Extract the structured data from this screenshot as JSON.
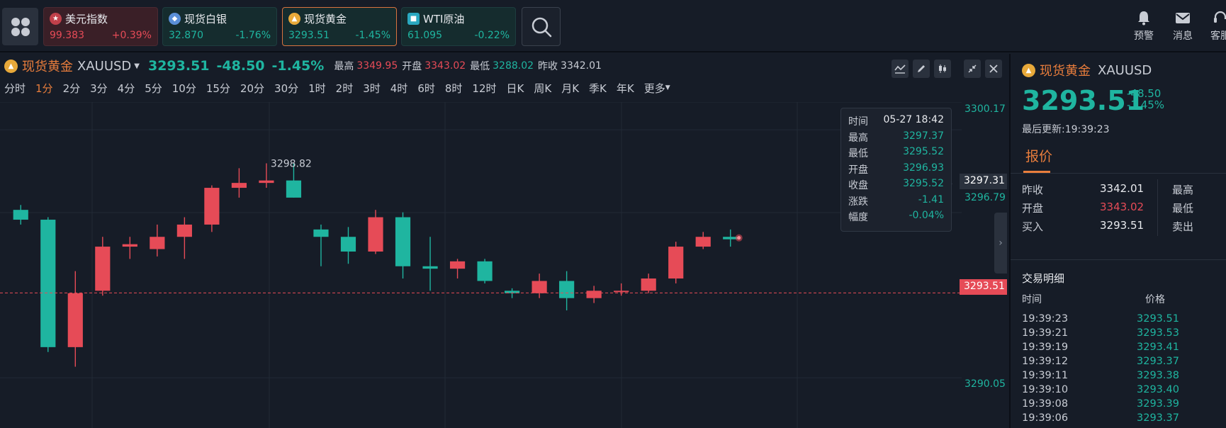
{
  "tickers": [
    {
      "name": "美元指数",
      "price": "99.383",
      "change": "+0.39%",
      "dir": "up"
    },
    {
      "name": "现货白银",
      "price": "32.870",
      "change": "-1.76%",
      "dir": "down"
    },
    {
      "name": "现货黄金",
      "price": "3293.51",
      "change": "-1.45%",
      "dir": "down"
    },
    {
      "name": "WTI原油",
      "price": "61.095",
      "change": "-0.22%",
      "dir": "down"
    }
  ],
  "top_right": {
    "alert": "预警",
    "messages": "消息",
    "service": "客服"
  },
  "chart_header": {
    "name": "现货黄金",
    "code": "XAUUSD",
    "price": "3293.51",
    "change": "-48.50",
    "change_pct": "-1.45%",
    "high_label": "最高",
    "high": "3349.95",
    "open_label": "开盘",
    "open": "3343.02",
    "low_label": "最低",
    "low": "3288.02",
    "prev_label": "昨收",
    "prev": "3342.01"
  },
  "periods": [
    "分时",
    "1分",
    "2分",
    "3分",
    "4分",
    "5分",
    "10分",
    "15分",
    "20分",
    "30分",
    "1时",
    "2时",
    "3时",
    "4时",
    "6时",
    "8时",
    "12时",
    "日K",
    "周K",
    "月K",
    "季K",
    "年K",
    "更多"
  ],
  "active_period": "1分",
  "price_axis": {
    "top": "3300.17",
    "mid": "3296.79",
    "bottom": "3290.05",
    "hover_tag": "3297.31",
    "last_tag": "3293.51"
  },
  "peak_label": "3298.82",
  "tooltip": {
    "rows": [
      {
        "k": "时间",
        "v": "05-27 18:42"
      },
      {
        "k": "最高",
        "v": "3297.37"
      },
      {
        "k": "最低",
        "v": "3295.52"
      },
      {
        "k": "开盘",
        "v": "3296.93"
      },
      {
        "k": "收盘",
        "v": "3295.52"
      },
      {
        "k": "涨跌",
        "v": "-1.41"
      },
      {
        "k": "幅度",
        "v": "-0.04%"
      }
    ]
  },
  "right_panel": {
    "name": "现货黄金",
    "code": "XAUUSD",
    "price": "3293.51",
    "change": "-48.50",
    "change_pct": "-1.45%",
    "updated": "最后更新:19:39:23",
    "tab": "报价",
    "quote": [
      {
        "l1": "昨收",
        "v1": "3342.01",
        "l2": "最高",
        "color": "#e8eaee"
      },
      {
        "l1": "开盘",
        "v1": "3343.02",
        "l2": "最低",
        "color": "#e64b57"
      },
      {
        "l1": "买入",
        "v1": "3293.51",
        "l2": "卖出",
        "color": "#e8eaee"
      }
    ],
    "trades_title": "交易明细",
    "trades_head_time": "时间",
    "trades_head_price": "价格",
    "trades": [
      {
        "t": "19:39:23",
        "p": "3293.51"
      },
      {
        "t": "19:39:21",
        "p": "3293.53"
      },
      {
        "t": "19:39:19",
        "p": "3293.41"
      },
      {
        "t": "19:39:12",
        "p": "3293.37"
      },
      {
        "t": "19:39:11",
        "p": "3293.38"
      },
      {
        "t": "19:39:10",
        "p": "3293.40"
      },
      {
        "t": "19:39:08",
        "p": "3293.39"
      },
      {
        "t": "19:39:06",
        "p": "3293.37"
      }
    ]
  },
  "chart_data": {
    "type": "candlestick",
    "title": "现货黄金 XAUUSD 1分",
    "ylim": [
      3288.0,
      3301.3
    ],
    "y_ticks": [
      3300.17,
      3296.79,
      3290.05
    ],
    "last_price": 3293.51,
    "candles": [
      {
        "o": 3296.9,
        "h": 3297.1,
        "l": 3296.3,
        "c": 3296.5
      },
      {
        "o": 3296.5,
        "h": 3296.6,
        "l": 3291.1,
        "c": 3291.3
      },
      {
        "o": 3291.3,
        "h": 3294.4,
        "l": 3290.5,
        "c": 3293.5
      },
      {
        "o": 3293.6,
        "h": 3295.8,
        "l": 3293.4,
        "c": 3295.4
      },
      {
        "o": 3295.4,
        "h": 3295.8,
        "l": 3294.9,
        "c": 3295.5
      },
      {
        "o": 3295.3,
        "h": 3296.3,
        "l": 3295.0,
        "c": 3295.8
      },
      {
        "o": 3295.8,
        "h": 3296.6,
        "l": 3294.9,
        "c": 3296.3
      },
      {
        "o": 3296.3,
        "h": 3297.9,
        "l": 3296.0,
        "c": 3297.8
      },
      {
        "o": 3297.8,
        "h": 3298.6,
        "l": 3297.4,
        "c": 3298.0
      },
      {
        "o": 3298.0,
        "h": 3298.8,
        "l": 3297.8,
        "c": 3298.1
      },
      {
        "o": 3298.1,
        "h": 3298.8,
        "l": 3297.4,
        "c": 3297.4
      },
      {
        "o": 3296.1,
        "h": 3296.3,
        "l": 3294.6,
        "c": 3295.8
      },
      {
        "o": 3295.8,
        "h": 3296.2,
        "l": 3294.7,
        "c": 3295.2
      },
      {
        "o": 3295.2,
        "h": 3296.9,
        "l": 3295.1,
        "c": 3296.6
      },
      {
        "o": 3296.6,
        "h": 3296.8,
        "l": 3294.1,
        "c": 3294.6
      },
      {
        "o": 3294.6,
        "h": 3295.8,
        "l": 3293.6,
        "c": 3294.5
      },
      {
        "o": 3294.5,
        "h": 3294.9,
        "l": 3294.1,
        "c": 3294.8
      },
      {
        "o": 3294.8,
        "h": 3294.9,
        "l": 3293.9,
        "c": 3294.0
      },
      {
        "o": 3293.6,
        "h": 3293.7,
        "l": 3293.3,
        "c": 3293.5
      },
      {
        "o": 3293.5,
        "h": 3294.3,
        "l": 3293.3,
        "c": 3294.0
      },
      {
        "o": 3294.0,
        "h": 3294.4,
        "l": 3292.8,
        "c": 3293.3
      },
      {
        "o": 3293.3,
        "h": 3293.8,
        "l": 3293.1,
        "c": 3293.6
      },
      {
        "o": 3293.6,
        "h": 3293.9,
        "l": 3293.4,
        "c": 3293.6
      },
      {
        "o": 3293.6,
        "h": 3294.3,
        "l": 3293.5,
        "c": 3294.1
      },
      {
        "o": 3294.1,
        "h": 3295.6,
        "l": 3293.9,
        "c": 3295.4
      },
      {
        "o": 3295.4,
        "h": 3296.0,
        "l": 3295.3,
        "c": 3295.8
      },
      {
        "o": 3295.8,
        "h": 3296.1,
        "l": 3295.4,
        "c": 3295.7
      }
    ]
  }
}
